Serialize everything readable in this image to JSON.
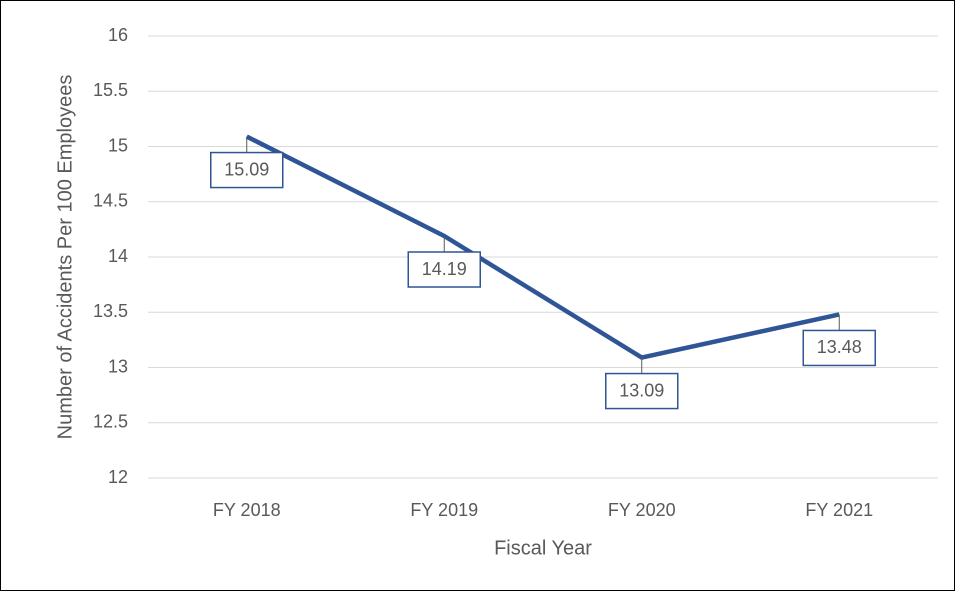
{
  "chart_data": {
    "type": "line",
    "categories": [
      "FY 2018",
      "FY 2019",
      "FY 2020",
      "FY 2021"
    ],
    "values": [
      15.09,
      14.19,
      13.09,
      13.48
    ],
    "color": "#2f5597",
    "xlabel": "Fiscal Year",
    "ylabel": "Number of Accidents Per 100 Employees",
    "ylim": [
      12,
      16
    ],
    "yticks": [
      12,
      12.5,
      13,
      13.5,
      14,
      14.5,
      15,
      15.5,
      16
    ],
    "grid": true
  }
}
